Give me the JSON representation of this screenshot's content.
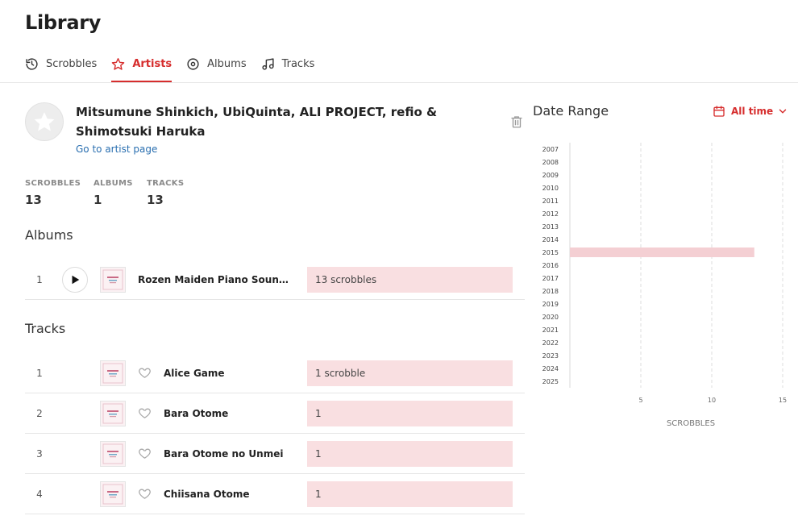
{
  "page": {
    "title": "Library"
  },
  "tabs": [
    {
      "label": "Scrobbles",
      "icon": "history-icon",
      "active": false
    },
    {
      "label": "Artists",
      "icon": "star-icon",
      "active": true
    },
    {
      "label": "Albums",
      "icon": "disc-icon",
      "active": false
    },
    {
      "label": "Tracks",
      "icon": "music-note-icon",
      "active": false
    }
  ],
  "artist": {
    "name": "Mitsumune Shinkich, UbiQuinta, ALI PROJECT, refio & Shimotsuki Haruka",
    "link_label": "Go to artist page",
    "avatar_icon": "star-icon"
  },
  "stats": [
    {
      "label": "SCROBBLES",
      "value": "13"
    },
    {
      "label": "ALBUMS",
      "value": "1"
    },
    {
      "label": "TRACKS",
      "value": "13"
    }
  ],
  "albums": {
    "title": "Albums",
    "rows": [
      {
        "rank": "1",
        "title": "Rozen Maiden Piano Sound Al…",
        "count": "13 scrobbles",
        "fraction": 1.0
      }
    ]
  },
  "tracks": {
    "title": "Tracks",
    "rows": [
      {
        "rank": "1",
        "title": "Alice Game",
        "count": "1 scrobble",
        "fraction": 1.0
      },
      {
        "rank": "2",
        "title": "Bara Otome",
        "count": "1",
        "fraction": 1.0
      },
      {
        "rank": "3",
        "title": "Bara Otome no Unmei",
        "count": "1",
        "fraction": 1.0
      },
      {
        "rank": "4",
        "title": "Chiisana Otome",
        "count": "1",
        "fraction": 1.0
      }
    ]
  },
  "date_range": {
    "title": "Date Range",
    "selected": "All time"
  },
  "colors": {
    "accent": "#d62d2d",
    "bar_fill": "#f9dfe1",
    "chart_bar": "#f4cfd3",
    "link": "#2a6fb0"
  },
  "chart_data": {
    "type": "bar",
    "orientation": "horizontal",
    "categories": [
      "2007",
      "2008",
      "2009",
      "2010",
      "2011",
      "2012",
      "2013",
      "2014",
      "2015",
      "2016",
      "2017",
      "2018",
      "2019",
      "2020",
      "2021",
      "2022",
      "2023",
      "2024",
      "2025"
    ],
    "values": [
      0,
      0,
      0,
      0,
      0,
      0,
      0,
      0,
      13,
      0,
      0,
      0,
      0,
      0,
      0,
      0,
      0,
      0,
      0
    ],
    "xlabel": "SCROBBLES",
    "xticks": [
      5,
      10,
      15
    ],
    "xlim": [
      0,
      15
    ],
    "grid": true
  }
}
